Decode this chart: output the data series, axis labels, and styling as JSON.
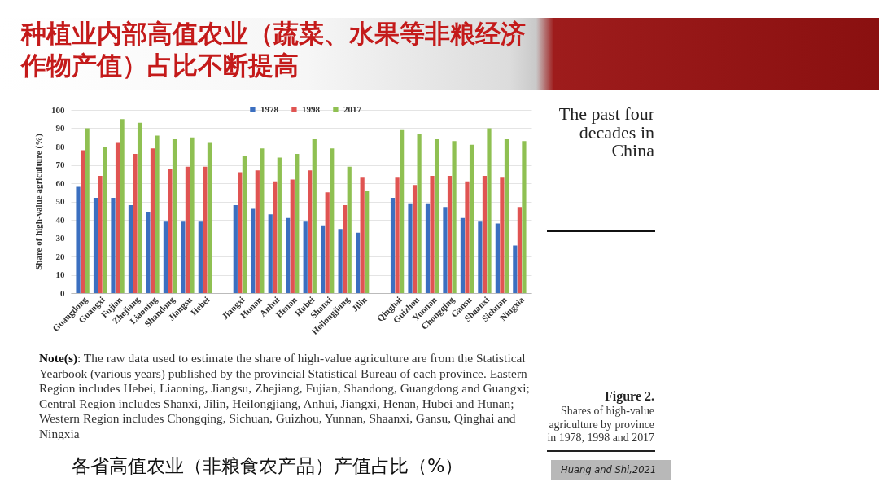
{
  "chart_data": {
    "type": "bar",
    "title": "种植业内部高值农业（蔬菜、水果等非粮经济作物产值）占比不断提高",
    "ylabel": "Share of high-value agriculture (%)",
    "categories": [
      "Guangdong",
      "Guangxi",
      "Fujian",
      "Zhejiang",
      "Liaoning",
      "Shandong",
      "Jiangsu",
      "Hebei",
      null,
      "Jiangxi",
      "Hunan",
      "Anhui",
      "Henan",
      "Hubei",
      "Shanxi",
      "Heilongjiang",
      "Jilin",
      null,
      "Qinghai",
      "Guizhou",
      "Yunnan",
      "Chongqing",
      "Gansu",
      "Shaanxi",
      "Sichuan",
      "Ningxia"
    ],
    "series": [
      {
        "name": "1978",
        "color": "#3b6fc0",
        "values": [
          58,
          52,
          52,
          48,
          44,
          39,
          39,
          39,
          null,
          48,
          46,
          43,
          41,
          39,
          37,
          35,
          33,
          null,
          52,
          49,
          49,
          47,
          41,
          39,
          38,
          26
        ]
      },
      {
        "name": "1998",
        "color": "#e05452",
        "values": [
          78,
          64,
          82,
          76,
          79,
          68,
          69,
          69,
          null,
          66,
          67,
          61,
          62,
          67,
          55,
          48,
          63,
          null,
          63,
          59,
          64,
          64,
          61,
          64,
          63,
          47
        ]
      },
      {
        "name": "2017",
        "color": "#8fc052",
        "values": [
          90,
          80,
          95,
          93,
          86,
          84,
          85,
          82,
          null,
          75,
          79,
          74,
          76,
          84,
          79,
          69,
          56,
          null,
          89,
          87,
          84,
          83,
          81,
          90,
          84,
          83
        ]
      }
    ],
    "ylim": [
      0,
      100
    ],
    "yticks": [
      0,
      10,
      20,
      30,
      40,
      50,
      60,
      70,
      80,
      90,
      100
    ],
    "grid": "y",
    "legend": "top",
    "annotations": [
      "The past four decades in China",
      "Note(s): The raw data used to estimate the share of high-value agriculture are from the Statistical Yearbook (various years) published by the provincial Statistical Bureau of each province. Eastern Region includes Hebei, Liaoning, Jiangsu, Zhejiang, Fujian, Shandong, Guangdong and Guangxi; Central Region includes Shanxi, Jilin, Heilongjiang, Anhui, Jiangxi, Henan, Hubei and Hunan; Western Region includes Chongqing, Sichuan, Guizhou, Yunnan, Shaanxi, Gansu, Qinghai and Ningxia",
      "Figure 2.",
      "Shares of high-value agriculture by province in 1978, 1998 and 2017",
      "各省高值农业（非粮食农产品）产值占比（%）",
      "Huang and Shi,2021"
    ]
  }
}
